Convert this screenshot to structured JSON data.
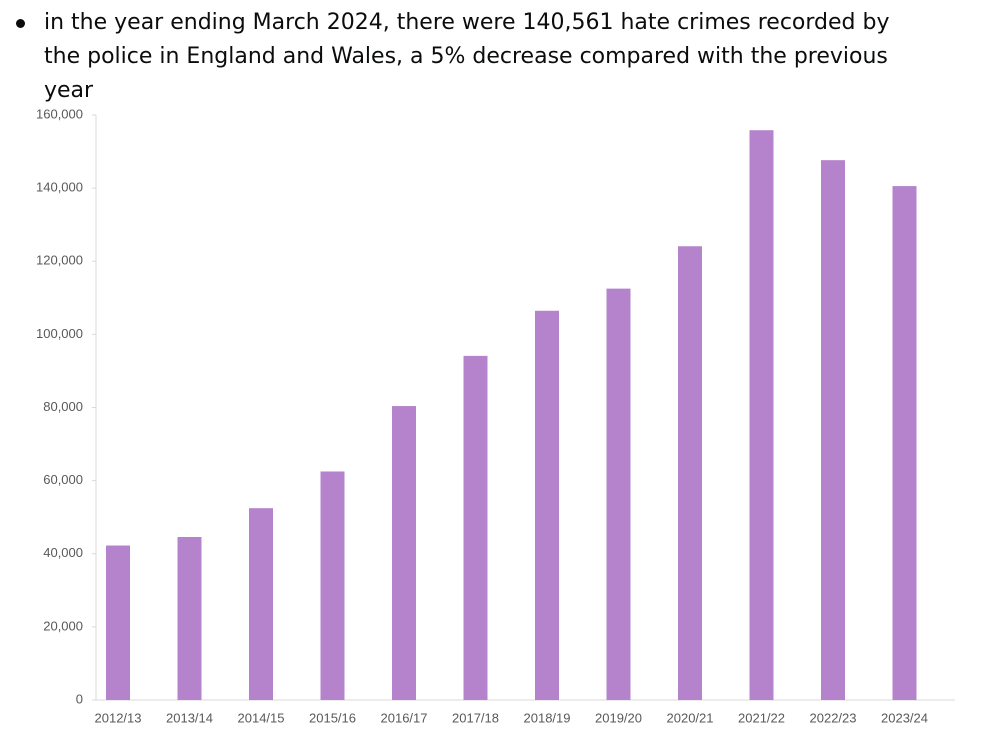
{
  "bullet": "in the year ending March 2024, there were 140,561 hate crimes recorded by the police in England and Wales, a 5% decrease compared with the previous year",
  "chart_data": {
    "type": "bar",
    "categories": [
      "2012/13",
      "2013/14",
      "2014/15",
      "2015/16",
      "2016/17",
      "2017/18",
      "2018/19",
      "2019/20",
      "2020/21",
      "2021/22",
      "2022/23",
      "2023/24"
    ],
    "values": [
      42255,
      44577,
      52465,
      62502,
      80393,
      94121,
      106458,
      112513,
      124104,
      155841,
      147645,
      140561
    ],
    "color": "#b583cc",
    "ylim": [
      0,
      160000
    ],
    "yticks": [
      0,
      {
        "value": 20000,
        "label": "20,000"
      },
      {
        "value": 40000,
        "label": "40,000"
      },
      {
        "value": 60000,
        "label": "60,000"
      },
      {
        "value": 80000,
        "label": "80,000"
      },
      {
        "value": 100000,
        "label": "100,000"
      },
      {
        "value": 120000,
        "label": "120,000"
      },
      {
        "value": 140000,
        "label": "140,000"
      },
      {
        "value": 160000,
        "label": "160,000"
      }
    ],
    "grid": false
  }
}
